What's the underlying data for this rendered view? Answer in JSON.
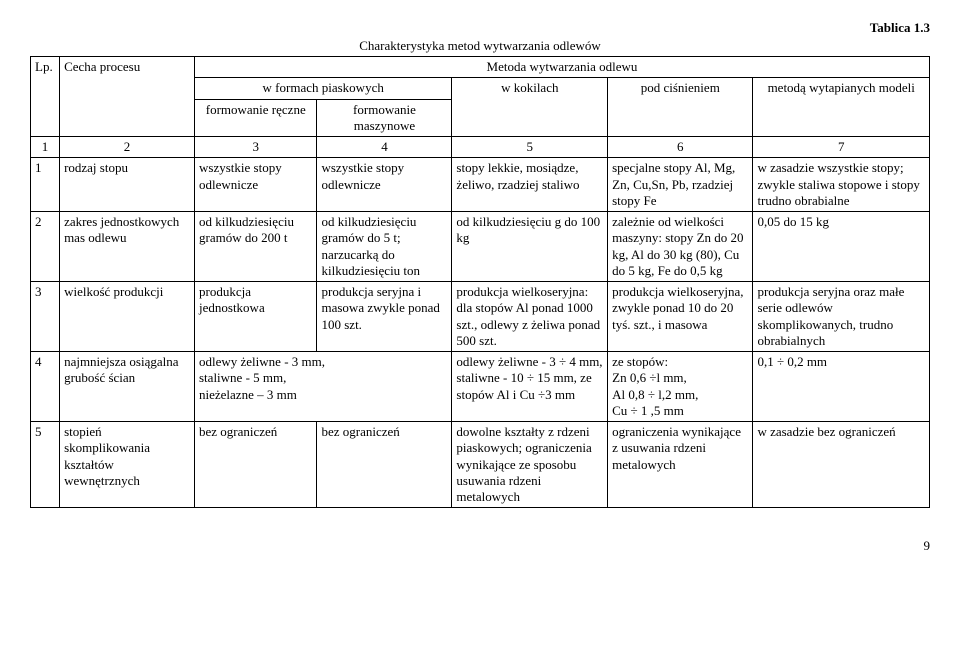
{
  "tableLabel": "Tablica 1.3",
  "title": "Charakterystyka metod wytwarzania odlewów",
  "header": {
    "lp": "Lp.",
    "cecha": "Cecha procesu",
    "metoda": "Metoda wytwarzania odlewu",
    "piaskowe": "w formach piaskowych",
    "kokile": "w kokilach",
    "cisnienie": "pod ciśnieniem",
    "wytapiane": "metodą wytapianych modeli",
    "reczne": "formowanie ręczne",
    "maszynowe": "formowanie maszynowe",
    "n1": "1",
    "n2": "2",
    "n3": "3",
    "n4": "4",
    "n5": "5",
    "n6": "6",
    "n7": "7"
  },
  "rows": [
    {
      "lp": "1",
      "cecha": "rodzaj stopu",
      "c3": "wszystkie stopy odlewnicze",
      "c4": "wszystkie stopy odlewnicze",
      "c5": "stopy lekkie, mosiądze, żeliwo, rzadziej staliwo",
      "c6": "specjalne stopy Al, Mg, Zn, Cu,Sn, Pb, rzadziej stopy Fe",
      "c7": "w zasadzie wszystkie stopy; zwykle staliwa stopowe i stopy trudno obrabialne"
    },
    {
      "lp": "2",
      "cecha": "zakres jednostkowych mas odlewu",
      "c3": "od kilkudziesięciu gramów do 200 t",
      "c4": "od kilkudziesięciu gramów do 5 t; narzucarką do kilkudziesięciu ton",
      "c5": "od kilkudziesięciu g do 100 kg",
      "c6": "zależnie od wielkości maszyny: stopy Zn do 20 kg, Al do 30 kg (80), Cu do 5 kg, Fe do 0,5 kg",
      "c7": "0,05 do 15 kg"
    },
    {
      "lp": "3",
      "cecha": "wielkość produkcji",
      "c3": "produkcja jednostkowa",
      "c4": "produkcja seryjna i masowa zwykle ponad 100 szt.",
      "c5": "produkcja wielkoseryjna: dla stopów Al ponad 1000 szt., odlewy z żeliwa ponad 500 szt.",
      "c6": "produkcja wielkoseryjna, zwykle ponad 10 do 20 tyś. szt., i masowa",
      "c7": "produkcja seryjna oraz małe serie odlewów skomplikowanych, trudno obrabialnych"
    },
    {
      "lp": "4",
      "cecha": "najmniejsza osiągalna grubość ścian",
      "c3_4": "odlewy żeliwne - 3 mm,\nstaliwne - 5 mm,\nnieżelazne – 3 mm",
      "c5": "odlewy żeliwne - 3 ÷ 4 mm, staliwne - 10 ÷ 15 mm, ze stopów Al i Cu ÷3 mm",
      "c6": "ze stopów:\nZn 0,6 ÷l mm,\nAl 0,8 ÷ l,2 mm,\nCu ÷ 1 ,5 mm",
      "c7": "0,1 ÷ 0,2 mm"
    },
    {
      "lp": "5",
      "cecha": "stopień skomplikowania kształtów wewnętrznych",
      "c3": "bez ograniczeń",
      "c4": "bez ograniczeń",
      "c5": "dowolne kształty z rdzeni piaskowych; ograniczenia wynikające ze sposobu usuwania rdzeni metalowych",
      "c6": "ograniczenia wynikające z usuwania rdzeni metalowych",
      "c7": "w zasadzie bez ograniczeń"
    }
  ],
  "pageNumber": "9"
}
